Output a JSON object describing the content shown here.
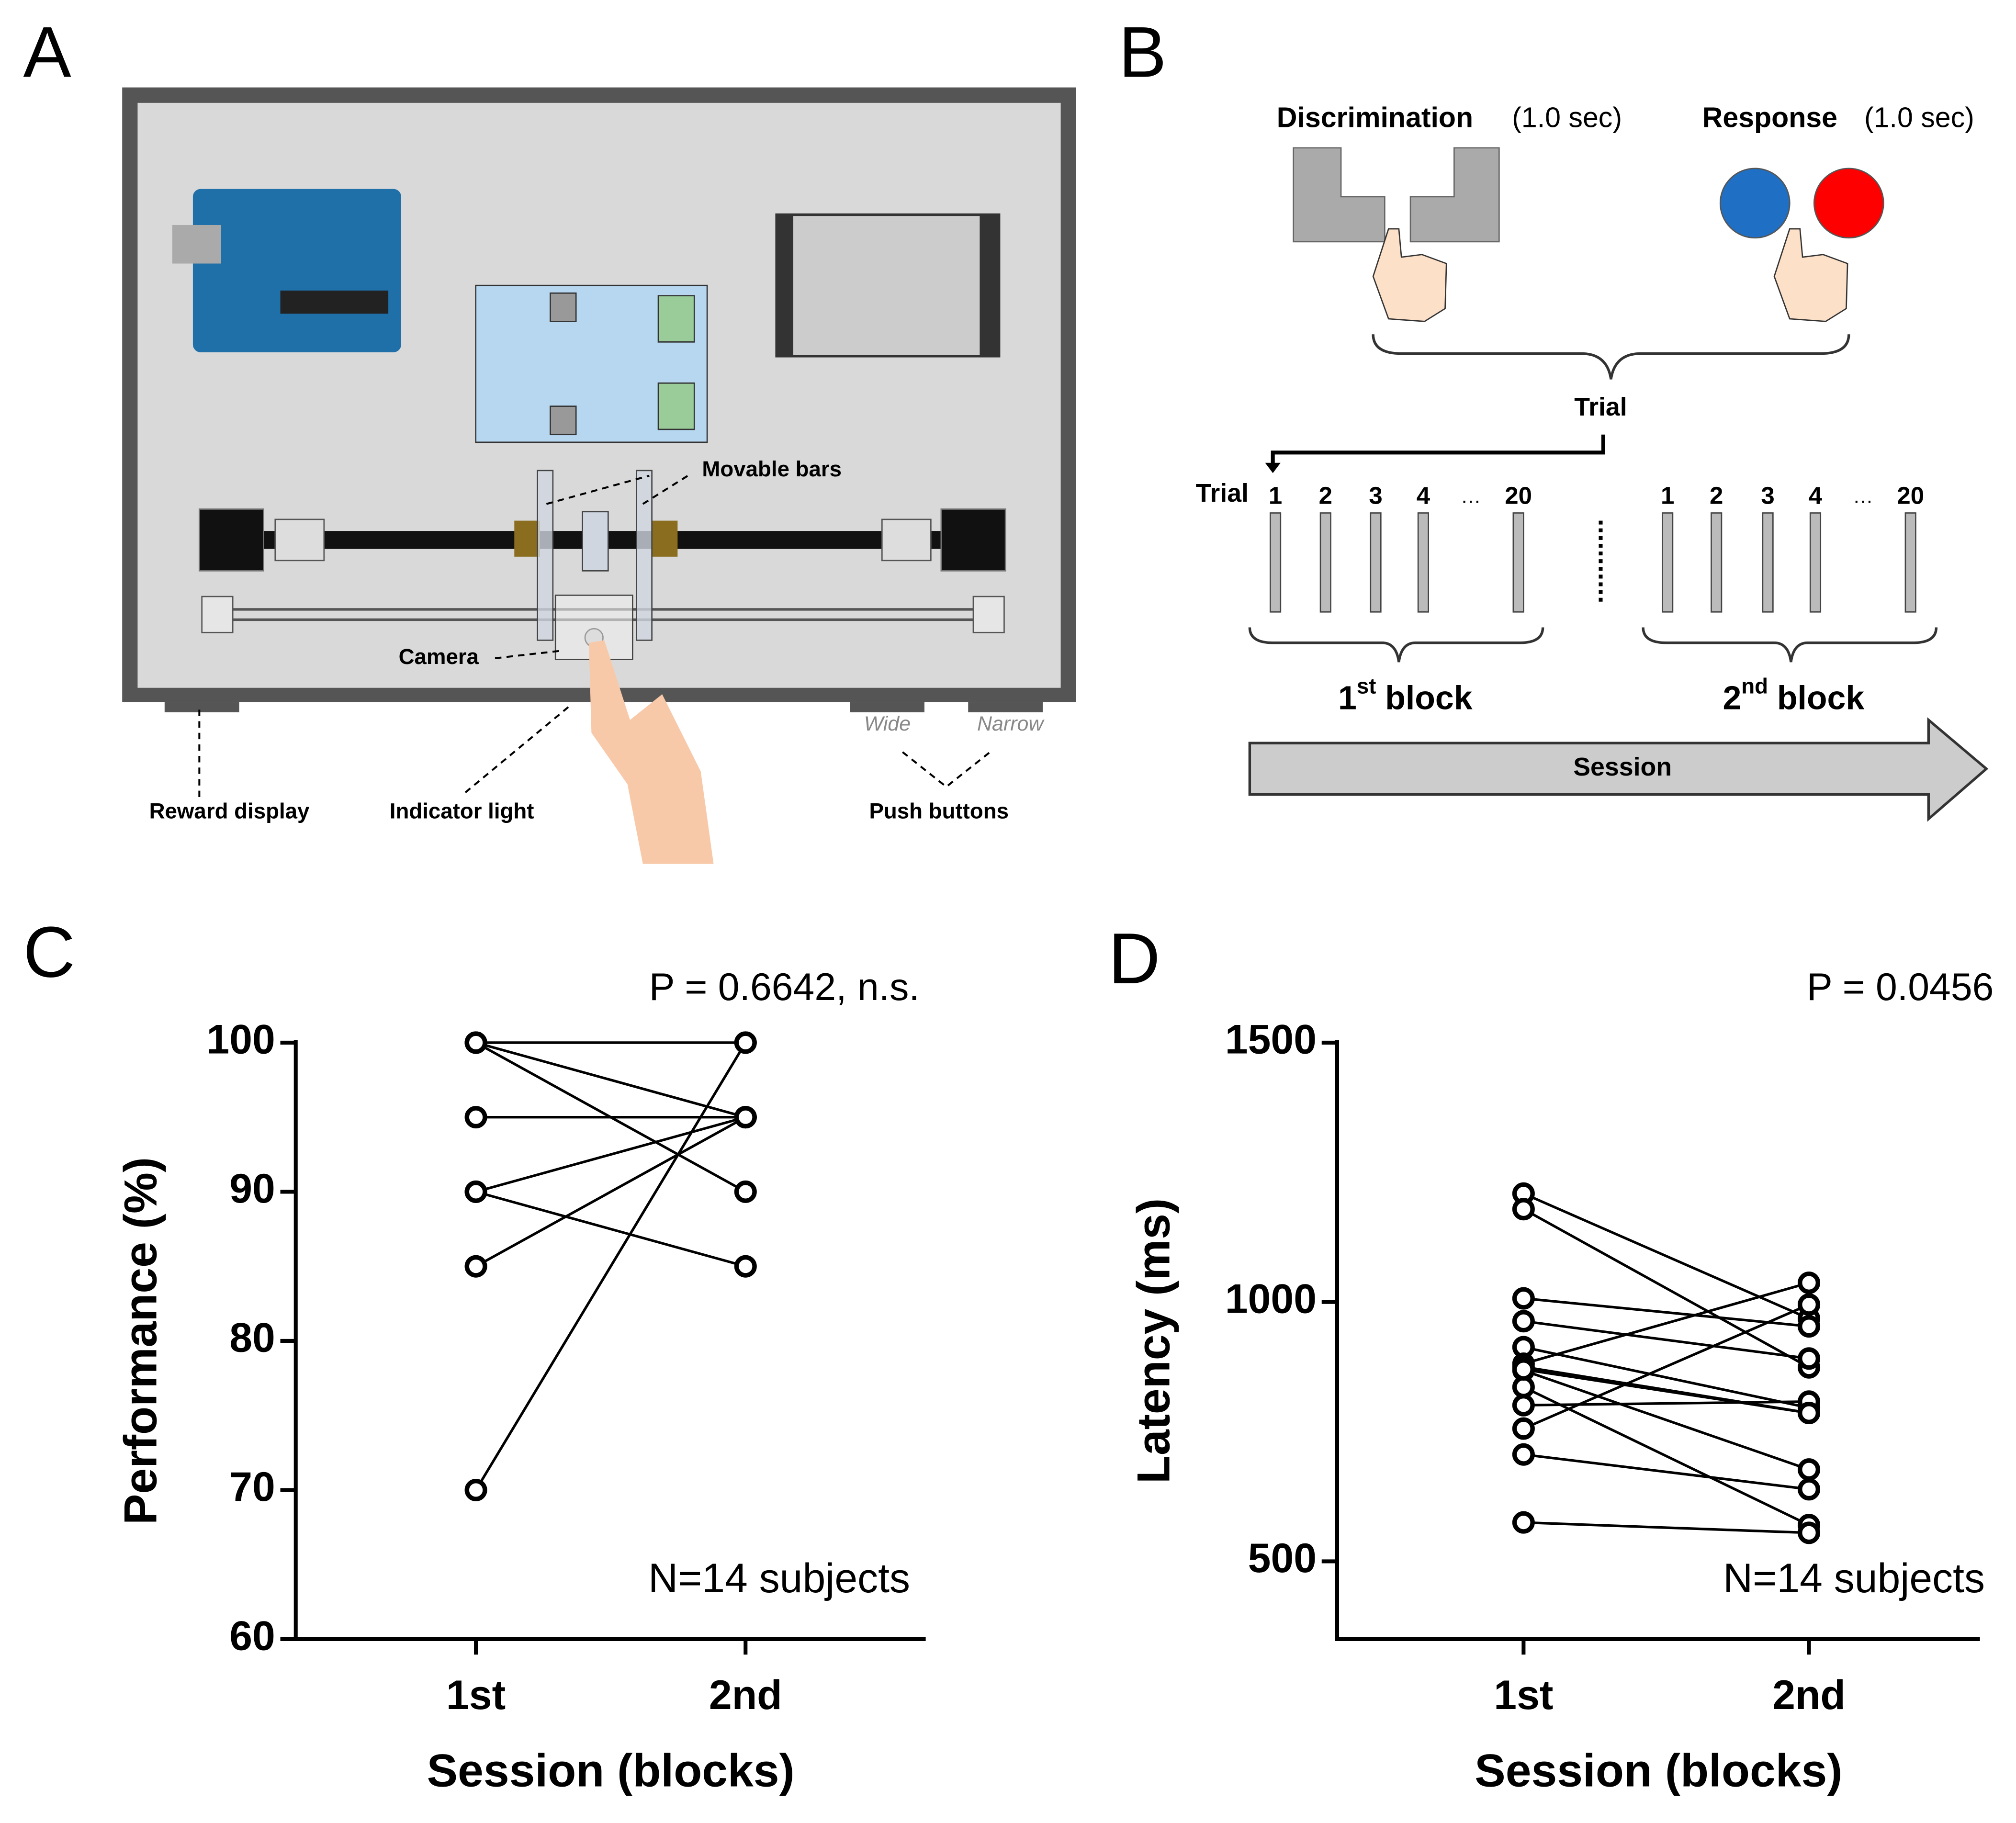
{
  "panel_a": {
    "letter": "A",
    "movable_bars": "Movable bars",
    "camera": "Camera",
    "reward_display": "Reward display",
    "indicator_light": "Indicator light",
    "push_buttons": "Push buttons",
    "wide": "Wide",
    "narrow": "Narrow"
  },
  "panel_b": {
    "letter": "B",
    "discrimination": "Discrimination",
    "discrimination_time": "(1.0 sec)",
    "response": "Response",
    "response_time": "(1.0 sec)",
    "trial": "Trial",
    "trial_axis": "Trial",
    "trial_numbers": [
      "1",
      "2",
      "3",
      "4",
      "…",
      "20"
    ],
    "block1": {
      "num": "1",
      "sup": "st",
      "word": "block"
    },
    "block2": {
      "num": "2",
      "sup": "nd",
      "word": "block"
    },
    "session": "Session"
  },
  "chart_data": [
    {
      "panel": "C",
      "type": "line",
      "categories": [
        "1st",
        "2nd"
      ],
      "x_label": "Session (blocks)",
      "y_label": "Performance (%)",
      "annotations": [
        "P = 0.6642, n.s.",
        "N=14 subjects"
      ],
      "color": "#000000",
      "ylim": [
        60,
        100
      ],
      "yticks": [
        60,
        70,
        80,
        90,
        100
      ],
      "series": [
        {
          "values": [
            70,
            100
          ]
        },
        {
          "values": [
            85,
            95
          ]
        },
        {
          "values": [
            90,
            95
          ]
        },
        {
          "values": [
            90,
            85
          ]
        },
        {
          "values": [
            95,
            95
          ]
        },
        {
          "values": [
            100,
            100
          ]
        },
        {
          "values": [
            100,
            95
          ]
        },
        {
          "values": [
            100,
            90
          ]
        }
      ]
    },
    {
      "panel": "D",
      "type": "line",
      "categories": [
        "1st",
        "2nd"
      ],
      "x_label": "Session (blocks)",
      "y_label": "Latency (ms)",
      "annotations": [
        "P = 0.0456",
        "N=14 subjects"
      ],
      "color": "#000000",
      "ylim": [
        350,
        1500
      ],
      "yticks": [
        500,
        1000,
        1500
      ],
      "series": [
        {
          "values": [
            1209,
            968
          ]
        },
        {
          "values": [
            1179,
            874
          ]
        },
        {
          "values": [
            1007,
            953
          ]
        },
        {
          "values": [
            963,
            891
          ]
        },
        {
          "values": [
            913,
            796
          ]
        },
        {
          "values": [
            881,
            1037
          ]
        },
        {
          "values": [
            875,
            786
          ]
        },
        {
          "values": [
            868,
            677
          ]
        },
        {
          "values": [
            836,
            570
          ]
        },
        {
          "values": [
            801,
            808
          ]
        },
        {
          "values": [
            756,
            995
          ]
        },
        {
          "values": [
            706,
            639
          ]
        },
        {
          "values": [
            575,
            555
          ]
        },
        {
          "values": [
            870,
            786
          ]
        }
      ]
    }
  ]
}
